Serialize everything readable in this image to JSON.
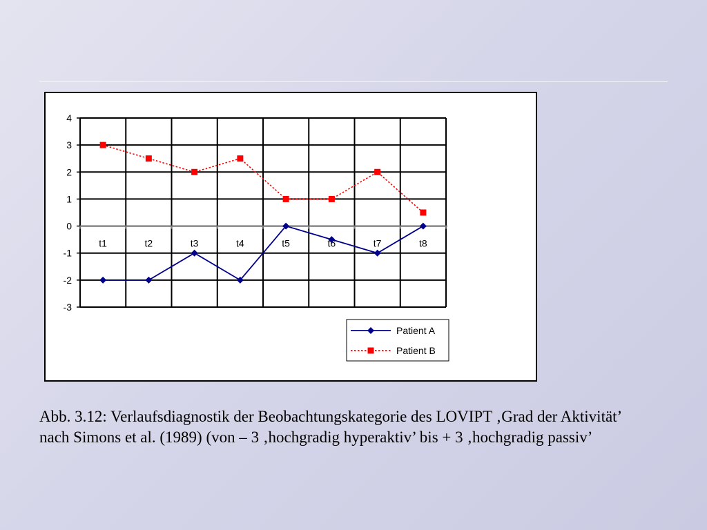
{
  "chart_data": {
    "type": "line",
    "categories": [
      "t1",
      "t2",
      "t3",
      "t4",
      "t5",
      "t6",
      "t7",
      "t8"
    ],
    "series": [
      {
        "name": "Patient A",
        "values": [
          -2,
          -2,
          -1,
          -2,
          0,
          -0.5,
          -1,
          0
        ],
        "color": "#00008b",
        "line_style": "solid",
        "marker": "diamond"
      },
      {
        "name": "Patient B",
        "values": [
          3,
          2.5,
          2,
          2.5,
          1,
          1,
          2,
          0.5
        ],
        "color": "#ff0000",
        "line_style": "dotted",
        "marker": "square"
      }
    ],
    "y_ticks": [
      "4",
      "3",
      "2",
      "1",
      "0",
      "-1",
      "-2",
      "-3"
    ],
    "ylim": [
      -3,
      4
    ],
    "title": "",
    "xlabel": "",
    "ylabel": "",
    "grid": true,
    "legend_position": "bottom-right"
  },
  "caption": {
    "line1": "Abb. 3.12: Verlaufsdiagnostik der Beobachtungskategorie des LOVIPT ‚Grad der Aktivität’",
    "line2": "nach Simons et al. (1989) (von – 3 ‚hochgradig hyperaktiv’ bis + 3 ‚hochgradig passiv’"
  }
}
